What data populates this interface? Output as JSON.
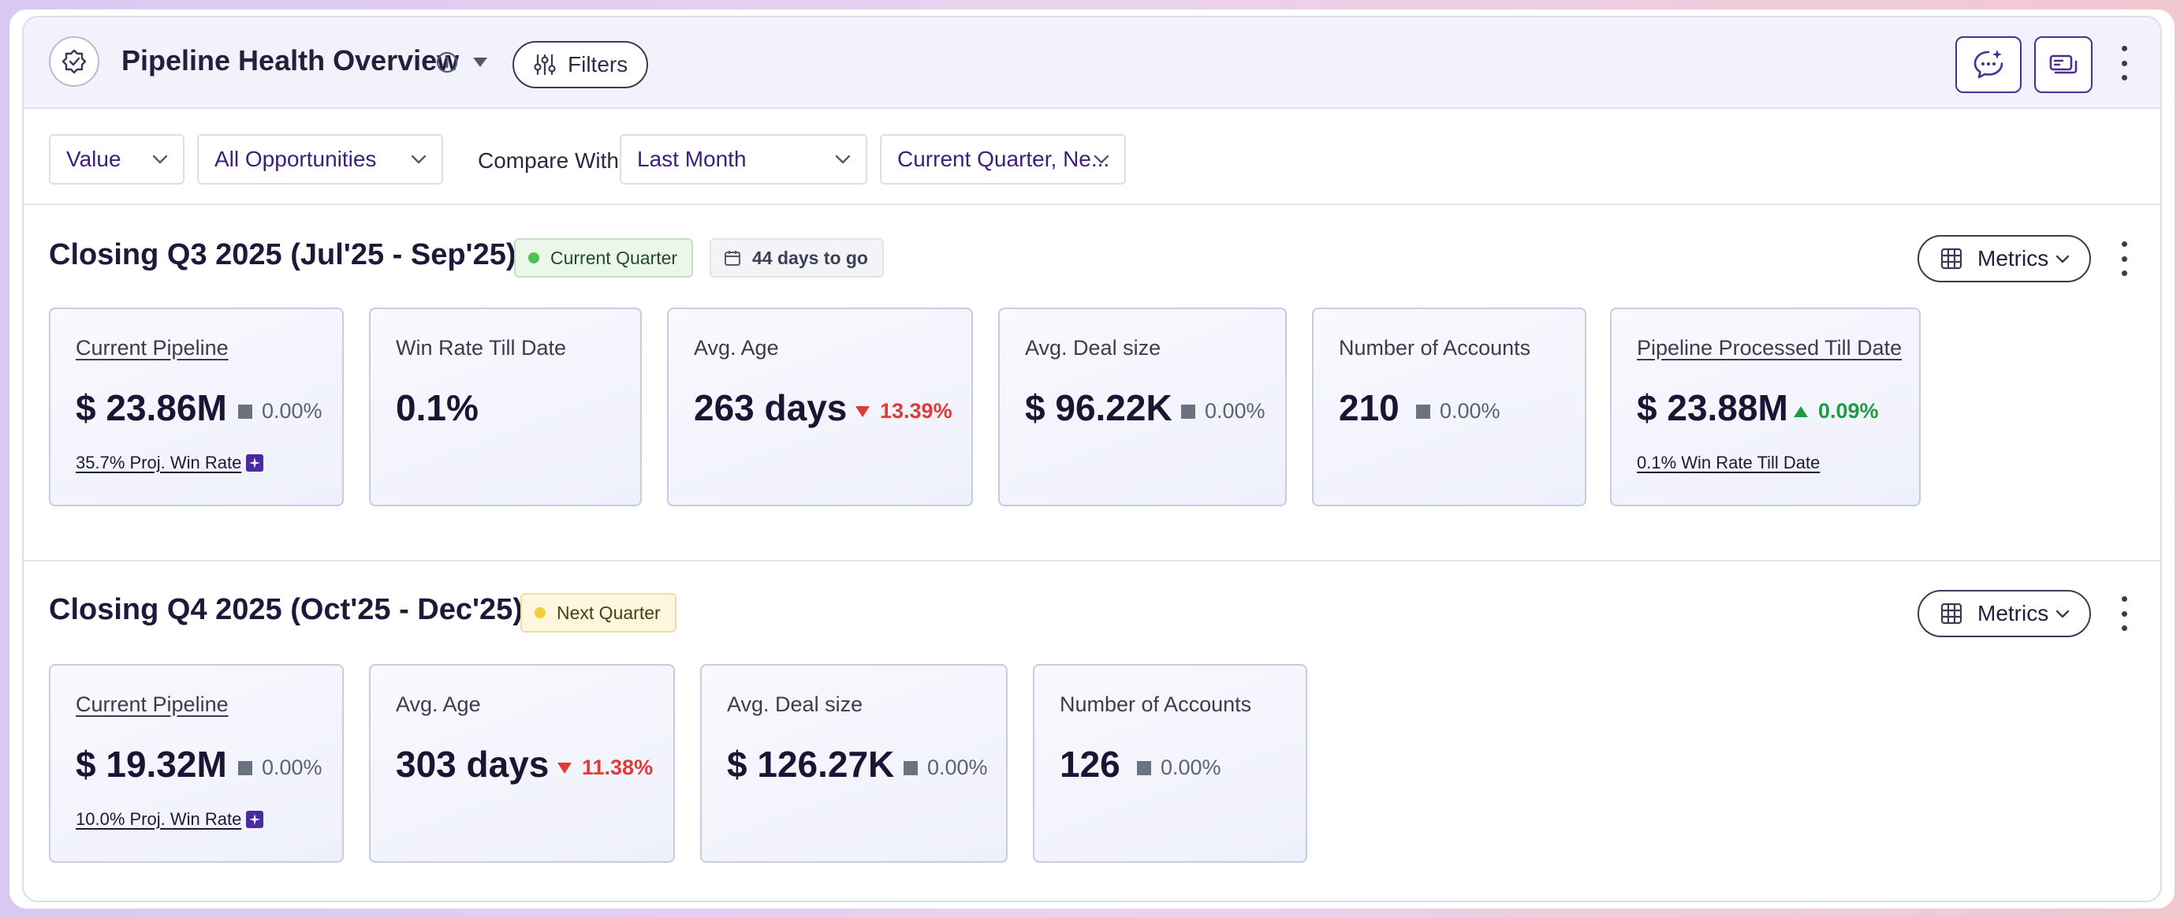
{
  "header": {
    "title": "Pipeline Health Overview",
    "filters_label": "Filters"
  },
  "filterbar": {
    "value_select": "Value",
    "opportunities_select": "All Opportunities",
    "compare_label": "Compare With:",
    "compare_select": "Last Month",
    "period_select": "Current Quarter, Ne..."
  },
  "sections": [
    {
      "title": "Closing Q3 2025 (Jul'25 - Sep'25)",
      "badge": "Current Quarter",
      "days_badge": "44 days to go",
      "metrics_label": "Metrics",
      "cards": [
        {
          "label": "Current Pipeline",
          "value": "$ 23.86M",
          "delta": "0.00%",
          "foot": "35.7% Proj. Win Rate"
        },
        {
          "label": "Win Rate Till Date",
          "value": "0.1%"
        },
        {
          "label": "Avg. Age",
          "value": "263 days",
          "delta": "13.39%"
        },
        {
          "label": "Avg. Deal size",
          "value": "$ 96.22K",
          "delta": "0.00%"
        },
        {
          "label": "Number of Accounts",
          "value": "210",
          "delta": "0.00%"
        },
        {
          "label": "Pipeline Processed Till Date",
          "value": "$ 23.88M",
          "delta": "0.09%",
          "foot": "0.1% Win Rate Till Date"
        }
      ]
    },
    {
      "title": "Closing Q4 2025 (Oct'25 - Dec'25)",
      "badge": "Next Quarter",
      "metrics_label": "Metrics",
      "cards": [
        {
          "label": "Current Pipeline",
          "value": "$ 19.32M",
          "delta": "0.00%",
          "foot": "10.0% Proj. Win Rate"
        },
        {
          "label": "Avg. Age",
          "value": "303 days",
          "delta": "11.38%"
        },
        {
          "label": "Avg. Deal size",
          "value": "$ 126.27K",
          "delta": "0.00%"
        },
        {
          "label": "Number of Accounts",
          "value": "126",
          "delta": "0.00%"
        }
      ]
    }
  ],
  "colors": {
    "accent": "#4a2f8f",
    "positive": "#1f9a45",
    "negative": "#e03a3a",
    "neutral": "#6b7380"
  }
}
